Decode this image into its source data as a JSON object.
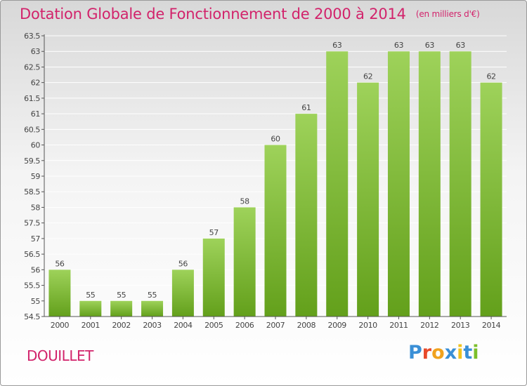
{
  "colors": {
    "title": "#d2236b",
    "bar_top": "#9ed25a",
    "bar_bottom": "#63a01b",
    "axis": "#555555",
    "grid": "#ffffff"
  },
  "header": {
    "title": "Dotation Globale de Fonctionnement de 2000 à 2014",
    "unit": "(en milliers d'€)"
  },
  "footer": {
    "commune": "DOUILLET",
    "logo": "Proxiti"
  },
  "chart_data": {
    "type": "bar",
    "title": "Dotation Globale de Fonctionnement de 2000 à 2014",
    "subtitle": "(en milliers d'€)",
    "xlabel": "",
    "ylabel": "",
    "categories": [
      "2000",
      "2001",
      "2002",
      "2003",
      "2004",
      "2005",
      "2006",
      "2007",
      "2008",
      "2009",
      "2010",
      "2011",
      "2012",
      "2013",
      "2014"
    ],
    "values": [
      56,
      55,
      55,
      55,
      56,
      57,
      58,
      60,
      61,
      63,
      62,
      63,
      63,
      63,
      62
    ],
    "data_labels": [
      "56",
      "55",
      "55",
      "55",
      "56",
      "57",
      "58",
      "60",
      "61",
      "63",
      "62",
      "63",
      "63",
      "63",
      "62"
    ],
    "ylim": [
      54.5,
      63.5
    ],
    "yticks": [
      54.5,
      55,
      55.5,
      56,
      56.5,
      57,
      57.5,
      58,
      58.5,
      59,
      59.5,
      60,
      60.5,
      61,
      61.5,
      62,
      62.5,
      63,
      63.5
    ],
    "ytick_labels": [
      "54.5",
      "55",
      "55.5",
      "56",
      "56.5",
      "57",
      "57.5",
      "58",
      "58.5",
      "59",
      "59.5",
      "60",
      "60.5",
      "61",
      "61.5",
      "62",
      "62.5",
      "63",
      "63.5"
    ],
    "grid": true,
    "legend": "none"
  }
}
